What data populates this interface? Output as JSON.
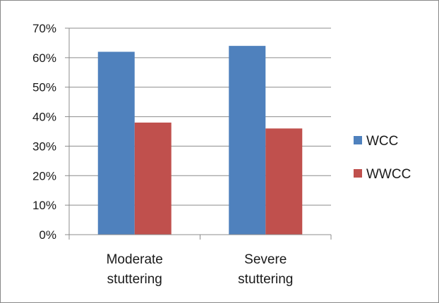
{
  "chart_data": {
    "type": "bar",
    "categories": [
      "Moderate stuttering",
      "Severe stuttering"
    ],
    "category_lines": [
      [
        "Moderate",
        "stuttering"
      ],
      [
        "Severe",
        "stuttering"
      ]
    ],
    "series": [
      {
        "name": "WCC",
        "color": "#4f81bd",
        "values": [
          62,
          64
        ]
      },
      {
        "name": "WWCC",
        "color": "#c0504d",
        "values": [
          38,
          36
        ]
      }
    ],
    "y_ticks": [
      0,
      10,
      20,
      30,
      40,
      50,
      60,
      70
    ],
    "y_tick_labels": [
      "0%",
      "10%",
      "20%",
      "30%",
      "40%",
      "50%",
      "60%",
      "70%"
    ],
    "ylim": [
      0,
      70
    ],
    "grid": true,
    "legend_position": "right",
    "title": "",
    "xlabel": "",
    "ylabel": ""
  }
}
